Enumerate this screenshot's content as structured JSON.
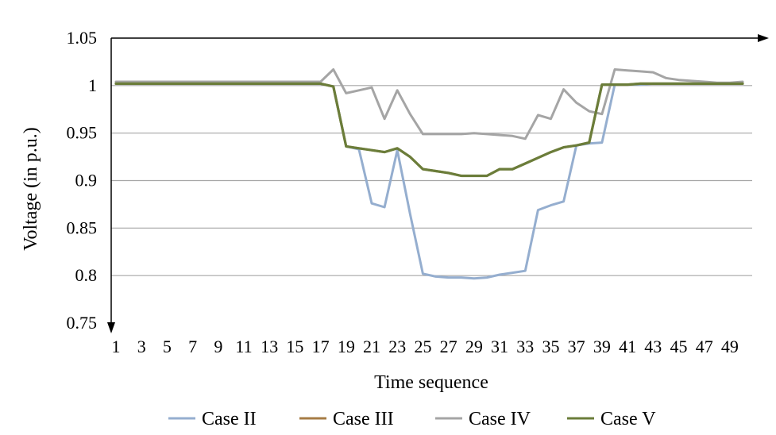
{
  "chart_data": {
    "type": "line",
    "xlabel": "Time sequence",
    "ylabel": "Voltage (in p.u.)",
    "ylim": [
      0.75,
      1.05
    ],
    "yticks": [
      "0.75",
      "0.8",
      "0.85",
      "0.9",
      "0.95",
      "1",
      "1.05"
    ],
    "xlim": [
      1,
      50
    ],
    "xtick_labels": [
      "1",
      "3",
      "5",
      "7",
      "9",
      "11",
      "13",
      "15",
      "17",
      "19",
      "21",
      "23",
      "25",
      "27",
      "29",
      "31",
      "33",
      "35",
      "37",
      "39",
      "41",
      "43",
      "45",
      "47",
      "49"
    ],
    "grid": true,
    "legend_position": "bottom",
    "x": [
      1,
      2,
      3,
      4,
      5,
      6,
      7,
      8,
      9,
      10,
      11,
      12,
      13,
      14,
      15,
      16,
      17,
      18,
      19,
      20,
      21,
      22,
      23,
      24,
      25,
      26,
      27,
      28,
      29,
      30,
      31,
      32,
      33,
      34,
      35,
      36,
      37,
      38,
      39,
      40,
      41,
      42,
      43,
      44,
      45,
      46,
      47,
      48,
      49,
      50
    ],
    "series": [
      {
        "name": "Case II",
        "color": "#95aecf",
        "values": [
          1.002,
          1.002,
          1.002,
          1.002,
          1.002,
          1.002,
          1.002,
          1.002,
          1.002,
          1.002,
          1.002,
          1.002,
          1.002,
          1.002,
          1.002,
          1.002,
          1.002,
          0.999,
          0.936,
          0.933,
          0.876,
          0.872,
          0.932,
          0.865,
          0.802,
          0.799,
          0.798,
          0.798,
          0.797,
          0.798,
          0.801,
          0.803,
          0.805,
          0.869,
          0.874,
          0.878,
          0.937,
          0.939,
          0.94,
          1.001,
          1.001,
          1.001,
          1.002,
          1.002,
          1.002,
          1.002,
          1.002,
          1.002,
          1.002,
          1.002
        ]
      },
      {
        "name": "Case III",
        "color": "#a67c45",
        "values": [
          1.002,
          1.002,
          1.002,
          1.002,
          1.002,
          1.002,
          1.002,
          1.002,
          1.002,
          1.002,
          1.002,
          1.002,
          1.002,
          1.002,
          1.002,
          1.002,
          1.002,
          0.999,
          0.936,
          0.934,
          0.932,
          0.93,
          0.934,
          0.925,
          0.912,
          0.91,
          0.908,
          0.905,
          0.905,
          0.905,
          0.912,
          0.912,
          0.918,
          0.924,
          0.93,
          0.935,
          0.937,
          0.94,
          1.001,
          1.001,
          1.001,
          1.002,
          1.002,
          1.002,
          1.002,
          1.002,
          1.002,
          1.002,
          1.002,
          1.002
        ]
      },
      {
        "name": "Case IV",
        "color": "#a5a5a5",
        "values": [
          1.004,
          1.004,
          1.004,
          1.004,
          1.004,
          1.004,
          1.004,
          1.004,
          1.004,
          1.004,
          1.004,
          1.004,
          1.004,
          1.004,
          1.004,
          1.004,
          1.004,
          1.017,
          0.992,
          0.995,
          0.998,
          0.965,
          0.995,
          0.97,
          0.949,
          0.949,
          0.949,
          0.949,
          0.95,
          0.949,
          0.948,
          0.947,
          0.944,
          0.969,
          0.965,
          0.996,
          0.982,
          0.973,
          0.97,
          1.017,
          1.016,
          1.015,
          1.014,
          1.008,
          1.006,
          1.005,
          1.004,
          1.003,
          1.003,
          1.004
        ]
      },
      {
        "name": "Case V",
        "color": "#6b7d3a",
        "values": [
          1.002,
          1.002,
          1.002,
          1.002,
          1.002,
          1.002,
          1.002,
          1.002,
          1.002,
          1.002,
          1.002,
          1.002,
          1.002,
          1.002,
          1.002,
          1.002,
          1.002,
          0.999,
          0.936,
          0.934,
          0.932,
          0.93,
          0.934,
          0.925,
          0.912,
          0.91,
          0.908,
          0.905,
          0.905,
          0.905,
          0.912,
          0.912,
          0.918,
          0.924,
          0.93,
          0.935,
          0.937,
          0.94,
          1.001,
          1.001,
          1.001,
          1.002,
          1.002,
          1.002,
          1.002,
          1.002,
          1.002,
          1.002,
          1.002,
          1.002
        ]
      }
    ]
  }
}
